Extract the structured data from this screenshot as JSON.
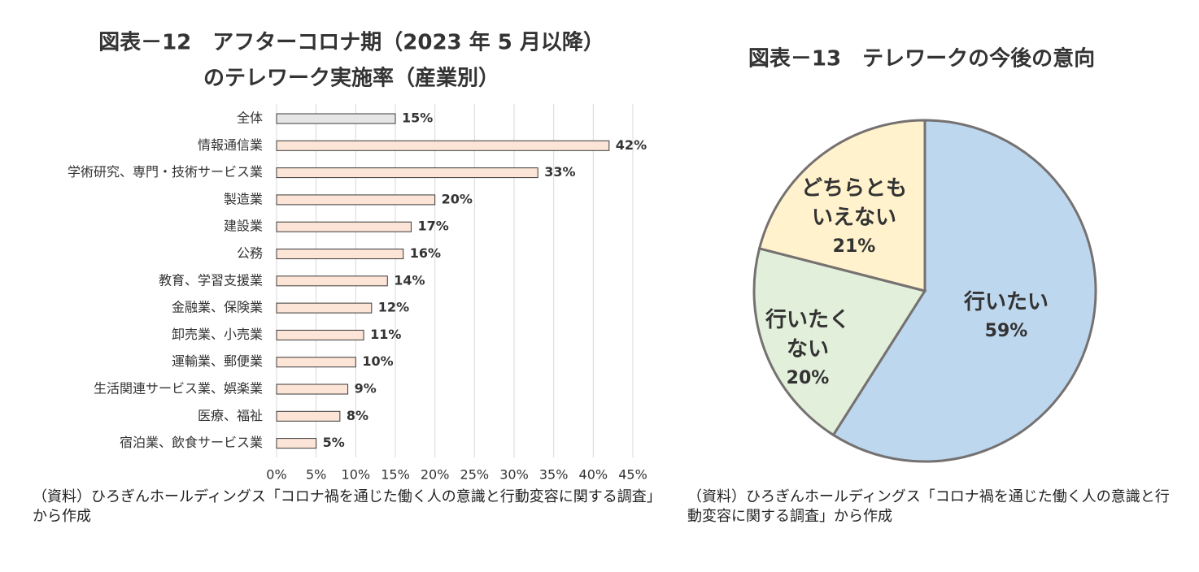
{
  "chart_data": [
    {
      "type": "bar",
      "title": [
        "図表－12　アフターコロナ期（2023 年 5 月以降）",
        "のテレワーク実施率（産業別）"
      ],
      "categories": [
        "全体",
        "情報通信業",
        "学術研究、専門・技術サービス業",
        "製造業",
        "建設業",
        "公務",
        "教育、学習支援業",
        "金融業、保険業",
        "卸売業、小売業",
        "運輸業、郵便業",
        "生活関連サービス業、娯楽業",
        "医療、福祉",
        "宿泊業、飲食サービス業"
      ],
      "values": [
        15,
        42,
        33,
        20,
        17,
        16,
        14,
        12,
        11,
        10,
        9,
        8,
        5
      ],
      "value_labels": [
        "15%",
        "42%",
        "33%",
        "20%",
        "17%",
        "16%",
        "14%",
        "12%",
        "11%",
        "10%",
        "9%",
        "8%",
        "5%"
      ],
      "colors": [
        "#e7e6e6",
        "#fce4d6",
        "#fce4d6",
        "#fce4d6",
        "#fce4d6",
        "#fce4d6",
        "#fce4d6",
        "#fce4d6",
        "#fce4d6",
        "#fce4d6",
        "#fce4d6",
        "#fce4d6",
        "#fce4d6"
      ],
      "xlim": [
        0,
        45
      ],
      "xticks": [
        {
          "value": 0,
          "label": "0%"
        },
        {
          "value": 5,
          "label": "5%"
        },
        {
          "value": 10,
          "label": "10%"
        },
        {
          "value": 15,
          "label": "15%"
        },
        {
          "value": 20,
          "label": "20%"
        },
        {
          "value": 25,
          "label": "25%"
        },
        {
          "value": 30,
          "label": "30%"
        },
        {
          "value": 35,
          "label": "35%"
        },
        {
          "value": 40,
          "label": "40%"
        },
        {
          "value": 45,
          "label": "45%"
        }
      ],
      "grid": true,
      "note": "（資料）ひろぎんホールディングス「コロナ禍を通じた働く人の意識と行動変容に関する調査」から作成"
    },
    {
      "type": "pie",
      "title": [
        "図表－13　テレワークの今後の意向"
      ],
      "categories": [
        "行いたい",
        "行いたくない",
        "どちらともいえない"
      ],
      "values": [
        59,
        20,
        21
      ],
      "value_labels": [
        "59%",
        "20%",
        "21%"
      ],
      "colors": [
        "#bdd7ee",
        "#e2efda",
        "#fff2cc"
      ],
      "note": "（資料）ひろぎんホールディングス「コロナ禍を通じた働く人の意識と行動変容に関する調査」から作成"
    }
  ]
}
